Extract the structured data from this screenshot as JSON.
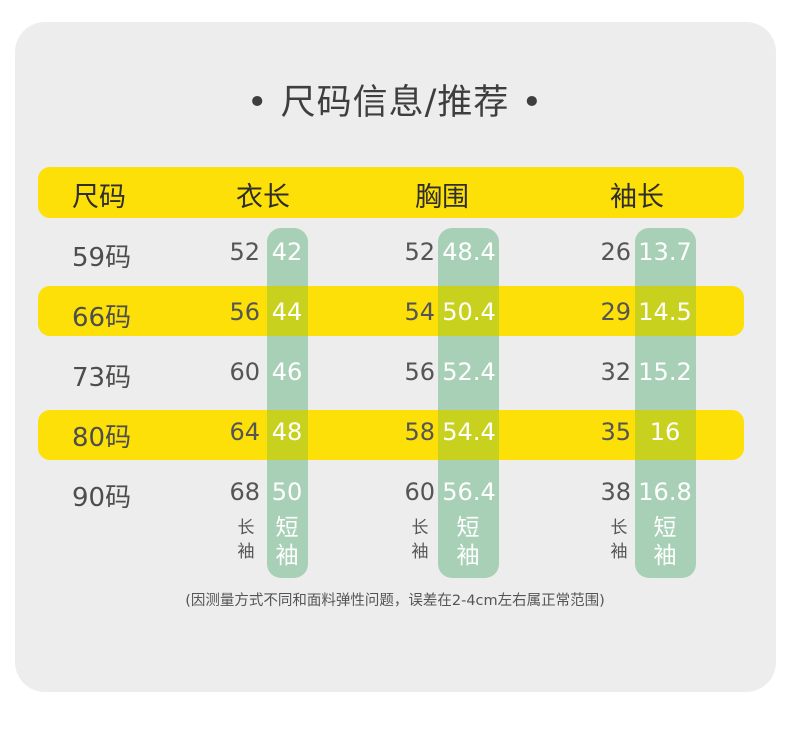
{
  "title": "• 尺码信息/推荐 •",
  "headers": {
    "size": "尺码",
    "length": "衣长",
    "chest": "胸围",
    "sleeve": "袖长"
  },
  "rows": [
    {
      "size": "59码",
      "length_long": "52",
      "length_short": "42",
      "chest_long": "52",
      "chest_short": "48.4",
      "sleeve_long": "26",
      "sleeve_short": "13.7"
    },
    {
      "size": "66码",
      "length_long": "56",
      "length_short": "44",
      "chest_long": "54",
      "chest_short": "50.4",
      "sleeve_long": "29",
      "sleeve_short": "14.5"
    },
    {
      "size": "73码",
      "length_long": "60",
      "length_short": "46",
      "chest_long": "56",
      "chest_short": "52.4",
      "sleeve_long": "32",
      "sleeve_short": "15.2"
    },
    {
      "size": "80码",
      "length_long": "64",
      "length_short": "48",
      "chest_long": "58",
      "chest_short": "54.4",
      "sleeve_long": "35",
      "sleeve_short": "16"
    },
    {
      "size": "90码",
      "length_long": "68",
      "length_short": "50",
      "chest_long": "60",
      "chest_short": "56.4",
      "sleeve_long": "38",
      "sleeve_short": "16.8"
    }
  ],
  "labels": {
    "long_1": "长",
    "long_2": "袖",
    "short_1": "短",
    "short_2": "袖"
  },
  "note": "(因测量方式不同和面料弹性问题，误差在2-4cm左右属正常范围)",
  "colors": {
    "yellow": "#fde008",
    "green": "#a8d0b6",
    "card": "#ededed"
  }
}
